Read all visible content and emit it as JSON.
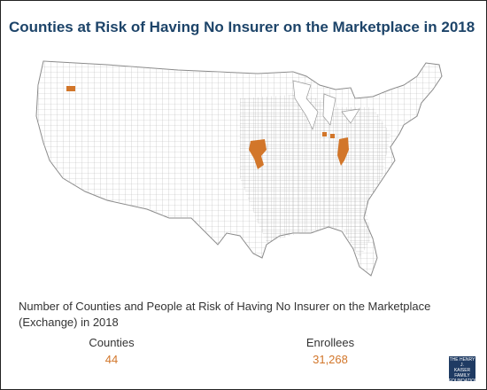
{
  "header": {
    "title": "Counties at Risk of Having No Insurer on the Marketplace in 2018"
  },
  "summary": {
    "heading": "Number of Counties and People at Risk of Having No Insurer on the Marketplace (Exchange) in 2018",
    "stats": [
      {
        "label": "Counties",
        "value": "44"
      },
      {
        "label": "Enrollees",
        "value": "31,268"
      }
    ]
  },
  "logo": {
    "line1": "THE HENRY J.",
    "line2": "KAISER",
    "line3": "FAMILY",
    "line4": "FOUNDATION"
  }
}
